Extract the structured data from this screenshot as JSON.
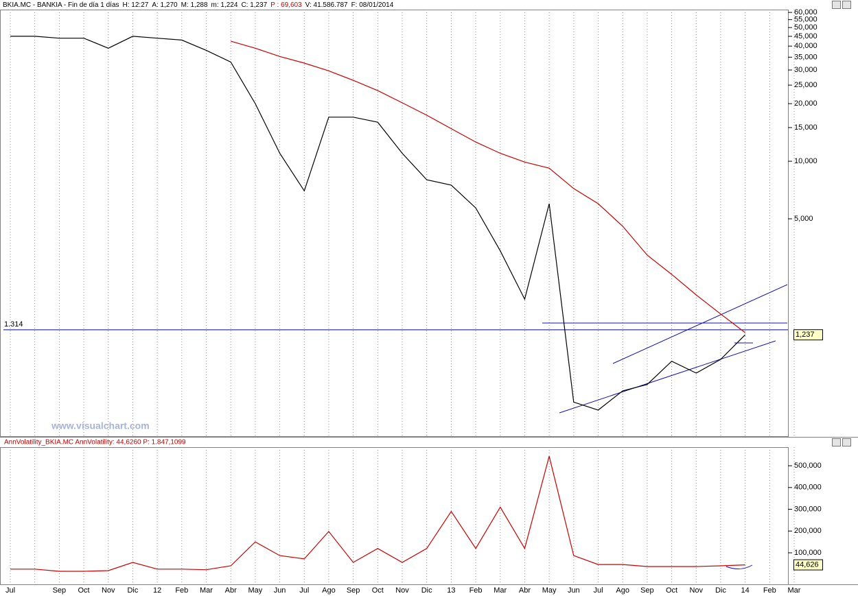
{
  "chart_data": [
    {
      "type": "line",
      "title": "BKIA.MC - BANKIA - Fin de día 1 días",
      "stats": [
        "H: 12:27",
        "A: 1,270",
        "M: 1,288",
        "m: 1,224",
        "C: 1,237",
        "P : 69,603",
        "V: 41.586.787",
        "F: 08/01/2014"
      ],
      "watermark": "www.visualchart.com",
      "log_scale": true,
      "ylim": [
        0.365,
        63.1
      ],
      "yticks": [
        {
          "value": 60,
          "label": "60,000"
        },
        {
          "value": 55,
          "label": "55,000"
        },
        {
          "value": 50,
          "label": "50,000"
        },
        {
          "value": 45,
          "label": "45,000"
        },
        {
          "value": 40,
          "label": "40,000"
        },
        {
          "value": 35,
          "label": "35,000"
        },
        {
          "value": 30,
          "label": "30,000"
        },
        {
          "value": 25,
          "label": "25,000"
        },
        {
          "value": 20,
          "label": "20,000"
        },
        {
          "value": 15,
          "label": "15,000"
        },
        {
          "value": 10,
          "label": "10,000"
        },
        {
          "value": 5,
          "label": "5,000"
        }
      ],
      "hline": {
        "value": 1.314,
        "label": "1.314",
        "color": "#00008b"
      },
      "last": {
        "value": 1.237,
        "label": "1,237"
      },
      "series": [
        {
          "color": "#000000",
          "values": [
            45,
            45,
            44,
            44,
            39,
            45,
            44,
            43,
            38,
            33,
            20,
            11,
            7,
            17,
            17,
            16,
            11,
            8,
            7.5,
            5.7,
            3.4,
            1.9,
            6,
            0.55,
            0.5,
            0.63,
            0.68,
            0.9,
            0.78,
            0.92,
            1.237,
            null,
            null
          ]
        },
        {
          "color": "#cc0000",
          "values": [
            null,
            null,
            null,
            null,
            null,
            null,
            null,
            null,
            null,
            42.4,
            39,
            35.3,
            32.6,
            29.7,
            26.5,
            23.4,
            20.2,
            17.4,
            14.8,
            12.6,
            11.0,
            9.9,
            9.2,
            7.2,
            6.0,
            4.57,
            3.23,
            2.56,
            2.0,
            1.59,
            1.27,
            null,
            null
          ]
        }
      ]
    },
    {
      "type": "line",
      "title": "AnnVolatility_BKIA.MC AnnVolatility: 44,6260 P: 1.847,1099",
      "categories": [
        "Jul",
        null,
        "Sep",
        "Oct",
        "Nov",
        "Dic",
        "12",
        "Feb",
        "Mar",
        "Abr",
        "May",
        "Jun",
        "Jul",
        "Ago",
        "Sep",
        "Oct",
        "Nov",
        "Dic",
        "13",
        "Feb",
        "Mar",
        "Abr",
        "May",
        "Jun",
        "Jul",
        "Ago",
        "Sep",
        "Oct",
        "Nov",
        "Dic",
        "14",
        "Feb",
        "Mar"
      ],
      "ylim": [
        -45,
        576
      ],
      "yticks": [
        {
          "value": 500,
          "label": "500,000"
        },
        {
          "value": 400,
          "label": "400,000"
        },
        {
          "value": 300,
          "label": "300,000"
        },
        {
          "value": 200,
          "label": "200,000"
        },
        {
          "value": 100,
          "label": "100,000"
        }
      ],
      "last": {
        "value": 44.626,
        "label": "44,626"
      },
      "series": [
        {
          "color": "#cc0000",
          "values": [
            25,
            25,
            15,
            15,
            18,
            56,
            25,
            25,
            22,
            40,
            150,
            87,
            72,
            198,
            56,
            120,
            56,
            120,
            290,
            120,
            310,
            120,
            544,
            87,
            46,
            46,
            37,
            37,
            37,
            40,
            44.626,
            null,
            null
          ]
        }
      ]
    }
  ]
}
